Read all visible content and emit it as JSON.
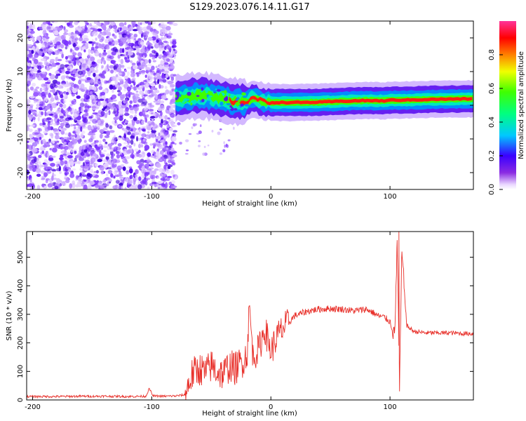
{
  "title": "S129.2023.076.14.11.G17",
  "colors": {
    "snr_line": "#e8302a",
    "axis": "#000000",
    "background": "#ffffff"
  },
  "chart_data": [
    {
      "type": "heatmap",
      "title": "S129.2023.076.14.11.G17",
      "xlabel": "Height of straight line (km)",
      "ylabel": "Frequency (Hz)",
      "xlim": [
        -205,
        170
      ],
      "ylim": [
        -25,
        25
      ],
      "x_ticks": [
        -200,
        -100,
        0,
        100
      ],
      "y_ticks": [
        -20,
        -10,
        0,
        10,
        20
      ],
      "colorbar": {
        "label": "Normalized spectral amplitude",
        "range": [
          0,
          1
        ],
        "ticks": [
          0.0,
          0.2,
          0.4,
          0.6,
          0.8
        ],
        "colormap": "rainbow (purple → blue → cyan → green → yellow → red → pink)"
      },
      "features": {
        "noise_region_x": [
          -205,
          -80
        ],
        "signal_ridge": [
          [
            -78,
            2
          ],
          [
            -70,
            2.5
          ],
          [
            -60,
            3
          ],
          [
            -50,
            2.5
          ],
          [
            -40,
            2
          ],
          [
            -30,
            1
          ],
          [
            -20,
            1
          ],
          [
            -15,
            2.5
          ],
          [
            -10,
            1.5
          ],
          [
            -5,
            1
          ],
          [
            0,
            0.8
          ],
          [
            20,
            0.8
          ],
          [
            40,
            0.9
          ],
          [
            60,
            1.2
          ],
          [
            80,
            1.4
          ],
          [
            95,
            1.3
          ],
          [
            100,
            1.5
          ],
          [
            120,
            1.6
          ],
          [
            140,
            1.8
          ],
          [
            170,
            1.9
          ]
        ]
      },
      "grid": false
    },
    {
      "type": "line",
      "xlabel": "Height of straight line (km)",
      "ylabel": "SNR (10 * v/v)",
      "xlim": [
        -205,
        170
      ],
      "ylim": [
        0,
        590
      ],
      "x_ticks": [
        -200,
        -100,
        0,
        100
      ],
      "y_ticks": [
        0,
        100,
        200,
        300,
        400,
        500
      ],
      "grid": false,
      "series": [
        {
          "values": [
            [
              -205,
              12
            ],
            [
              -180,
              12
            ],
            [
              -160,
              13
            ],
            [
              -140,
              13
            ],
            [
              -120,
              12
            ],
            [
              -105,
              13
            ],
            [
              -102,
              40
            ],
            [
              -99,
              14
            ],
            [
              -90,
              13
            ],
            [
              -80,
              14
            ],
            [
              -72,
              18
            ],
            [
              -66,
              90
            ],
            [
              -60,
              110
            ],
            [
              -55,
              95
            ],
            [
              -50,
              120
            ],
            [
              -45,
              100
            ],
            [
              -40,
              90
            ],
            [
              -35,
              120
            ],
            [
              -30,
              110
            ],
            [
              -25,
              130
            ],
            [
              -20,
              160
            ],
            [
              -18,
              330
            ],
            [
              -15,
              150
            ],
            [
              -10,
              180
            ],
            [
              -5,
              250
            ],
            [
              0,
              170
            ],
            [
              5,
              220
            ],
            [
              10,
              250
            ],
            [
              15,
              270
            ],
            [
              20,
              295
            ],
            [
              30,
              310
            ],
            [
              40,
              318
            ],
            [
              50,
              320
            ],
            [
              60,
              318
            ],
            [
              70,
              312
            ],
            [
              80,
              318
            ],
            [
              85,
              308
            ],
            [
              90,
              295
            ],
            [
              95,
              290
            ],
            [
              100,
              275
            ],
            [
              104,
              220
            ],
            [
              106,
              560
            ],
            [
              108,
              50
            ],
            [
              110,
              520
            ],
            [
              114,
              260
            ],
            [
              120,
              240
            ],
            [
              130,
              235
            ],
            [
              140,
              235
            ],
            [
              150,
              235
            ],
            [
              160,
              233
            ],
            [
              170,
              232
            ]
          ]
        }
      ]
    }
  ]
}
